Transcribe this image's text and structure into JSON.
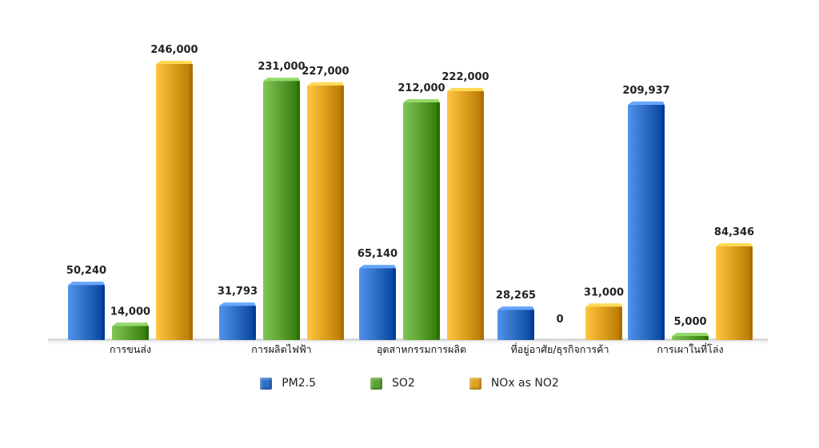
{
  "chart_data": {
    "type": "bar",
    "categories": [
      "การขนส่ง",
      "การผลิตไฟฟ้า",
      "อุตสาหกรรมการผลิต",
      "ที่อยู่อาศัย/ธุรกิจการค้า",
      "การเผาในที่โล่ง"
    ],
    "series": [
      {
        "name": "PM2.5",
        "color": "#2F6FC8",
        "values": [
          50240,
          31793,
          65140,
          28265,
          209937
        ],
        "labels": [
          "50,240",
          "31,793",
          "65,140",
          "28,265",
          "209,937"
        ]
      },
      {
        "name": "SO2",
        "color": "#5CA334",
        "values": [
          14000,
          231000,
          212000,
          0,
          5000
        ],
        "labels": [
          "14,000",
          "231,000",
          "212,000",
          "0",
          "5,000"
        ]
      },
      {
        "name": "NOx as NO2",
        "color": "#E0A21E",
        "values": [
          246000,
          227000,
          222000,
          31000,
          84346
        ],
        "labels": [
          "246,000",
          "227,000",
          "222,000",
          "31,000",
          "84,346"
        ]
      }
    ],
    "ylim": [
      0,
      246000
    ],
    "grid": false,
    "legend_position": "bottom"
  }
}
